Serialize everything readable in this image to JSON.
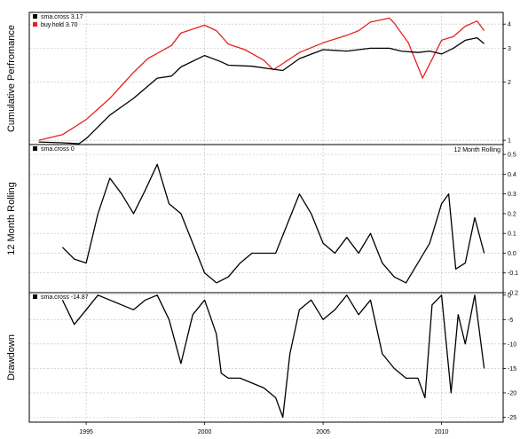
{
  "chart_data": [
    {
      "type": "line",
      "ylabel": "Cumulative Perfromance",
      "y_scale": "log",
      "ylim": [
        0.95,
        4.6
      ],
      "xlim": [
        1992.6,
        2012.6
      ],
      "yticks": [
        1,
        2,
        3,
        4
      ],
      "yticklabels": [
        "1",
        "2",
        "3",
        "4"
      ],
      "grid": true,
      "legend": "top-left",
      "legend_entries": [
        {
          "label": "sma.cross 3.17",
          "color": "#000000"
        },
        {
          "label": "buy.hold 3.70",
          "color": "#e8211f"
        }
      ],
      "series": [
        {
          "name": "buy.hold",
          "color": "#e8211f",
          "x": [
            1993.0,
            1994.0,
            1995.0,
            1996.0,
            1997.0,
            1997.6,
            1998.6,
            1999.0,
            2000.0,
            2000.5,
            2001.0,
            2001.7,
            2002.5,
            2002.9,
            2003.2,
            2004.0,
            2005.0,
            2006.0,
            2006.5,
            2007.0,
            2007.8,
            2008.0,
            2008.6,
            2009.2,
            2010.0,
            2010.5,
            2011.0,
            2011.5,
            2011.8
          ],
          "y": [
            1.0,
            1.07,
            1.28,
            1.65,
            2.25,
            2.65,
            3.1,
            3.6,
            3.95,
            3.7,
            3.15,
            2.95,
            2.6,
            2.32,
            2.45,
            2.85,
            3.2,
            3.5,
            3.7,
            4.1,
            4.3,
            4.05,
            3.2,
            2.1,
            3.3,
            3.45,
            3.9,
            4.15,
            3.7
          ]
        },
        {
          "name": "sma.cross",
          "color": "#000000",
          "x": [
            1993.0,
            1994.0,
            1994.7,
            1995.0,
            1996.0,
            1997.0,
            1998.0,
            1998.6,
            1999.0,
            2000.0,
            2000.7,
            2001.0,
            2002.0,
            2002.7,
            2003.3,
            2004.0,
            2005.0,
            2006.0,
            2007.0,
            2007.8,
            2008.3,
            2009.0,
            2009.5,
            2010.0,
            2010.5,
            2011.0,
            2011.5,
            2011.8
          ],
          "y": [
            0.98,
            0.97,
            0.96,
            1.02,
            1.35,
            1.65,
            2.1,
            2.15,
            2.4,
            2.75,
            2.55,
            2.45,
            2.42,
            2.35,
            2.3,
            2.65,
            2.95,
            2.9,
            3.0,
            3.0,
            2.9,
            2.85,
            2.9,
            2.8,
            3.0,
            3.3,
            3.4,
            3.17
          ]
        }
      ]
    },
    {
      "type": "line",
      "ylabel": "12 Month Rolling",
      "title": "12 Month Rolling",
      "ylim": [
        -0.2,
        0.55
      ],
      "xlim": [
        1992.6,
        2012.6
      ],
      "yticks": [
        -0.2,
        -0.1,
        0.0,
        0.1,
        0.2,
        0.3,
        0.4,
        0.5
      ],
      "yticklabels": [
        "-0.2",
        "-0.1",
        "0.0",
        "0.1",
        "0.2",
        "0.3",
        "0.4",
        "0.5"
      ],
      "grid": true,
      "legend": "top-left",
      "legend_entries": [
        {
          "label": "sma.cross 0",
          "color": "#000000"
        }
      ],
      "series": [
        {
          "name": "sma.cross",
          "color": "#000000",
          "x": [
            1994.0,
            1994.5,
            1995.0,
            1995.5,
            1996.0,
            1996.5,
            1997.0,
            1997.5,
            1998.0,
            1998.5,
            1999.0,
            1999.5,
            2000.0,
            2000.5,
            2001.0,
            2001.5,
            2002.0,
            2002.5,
            2003.0,
            2003.5,
            2004.0,
            2004.5,
            2005.0,
            2005.5,
            2006.0,
            2006.5,
            2007.0,
            2007.5,
            2008.0,
            2008.5,
            2009.0,
            2009.5,
            2010.0,
            2010.3,
            2010.6,
            2011.0,
            2011.4,
            2011.8
          ],
          "y": [
            0.03,
            -0.03,
            -0.05,
            0.2,
            0.38,
            0.3,
            0.2,
            0.32,
            0.45,
            0.25,
            0.2,
            0.05,
            -0.1,
            -0.15,
            -0.12,
            -0.05,
            0.0,
            0.0,
            0.0,
            0.15,
            0.3,
            0.2,
            0.05,
            0.0,
            0.08,
            0.0,
            0.1,
            -0.05,
            -0.12,
            -0.15,
            -0.05,
            0.05,
            0.25,
            0.3,
            -0.08,
            -0.05,
            0.18,
            0.0
          ]
        }
      ]
    },
    {
      "type": "line",
      "ylabel": "Drawdown",
      "ylim": [
        -26,
        0.5
      ],
      "xlim": [
        1992.6,
        2012.6
      ],
      "xticks": [
        1995,
        2000,
        2005,
        2010
      ],
      "xticklabels": [
        "1995",
        "2000",
        "2005",
        "2010"
      ],
      "yticks": [
        0,
        -5,
        -10,
        -15,
        -20,
        -25
      ],
      "yticklabels": [
        "0",
        "-5",
        "-10",
        "-15",
        "-20",
        "-25"
      ],
      "grid": true,
      "legend": "top-left",
      "legend_entries": [
        {
          "label": "sma.cross -14.87",
          "color": "#000000"
        }
      ],
      "series": [
        {
          "name": "sma.cross",
          "color": "#000000",
          "x": [
            1994.0,
            1994.5,
            1995.0,
            1995.5,
            1996.0,
            1996.5,
            1997.0,
            1997.5,
            1998.0,
            1998.5,
            1999.0,
            1999.5,
            2000.0,
            2000.5,
            2000.7,
            2001.0,
            2001.5,
            2002.0,
            2002.5,
            2003.0,
            2003.3,
            2003.6,
            2004.0,
            2004.5,
            2005.0,
            2005.5,
            2006.0,
            2006.5,
            2007.0,
            2007.5,
            2008.0,
            2008.5,
            2009.0,
            2009.3,
            2009.6,
            2010.0,
            2010.4,
            2010.7,
            2011.0,
            2011.4,
            2011.8
          ],
          "y": [
            -1,
            -6,
            -3,
            0,
            -1,
            -2,
            -3,
            -1,
            0,
            -5,
            -14,
            -4,
            -1,
            -8,
            -16,
            -17,
            -17,
            -18,
            -19,
            -21,
            -25,
            -12,
            -3,
            -1,
            -5,
            -3,
            0,
            -4,
            -1,
            -12,
            -15,
            -17,
            -17,
            -21,
            -2,
            0,
            -20,
            -4,
            -10,
            0,
            -15
          ]
        }
      ]
    }
  ]
}
